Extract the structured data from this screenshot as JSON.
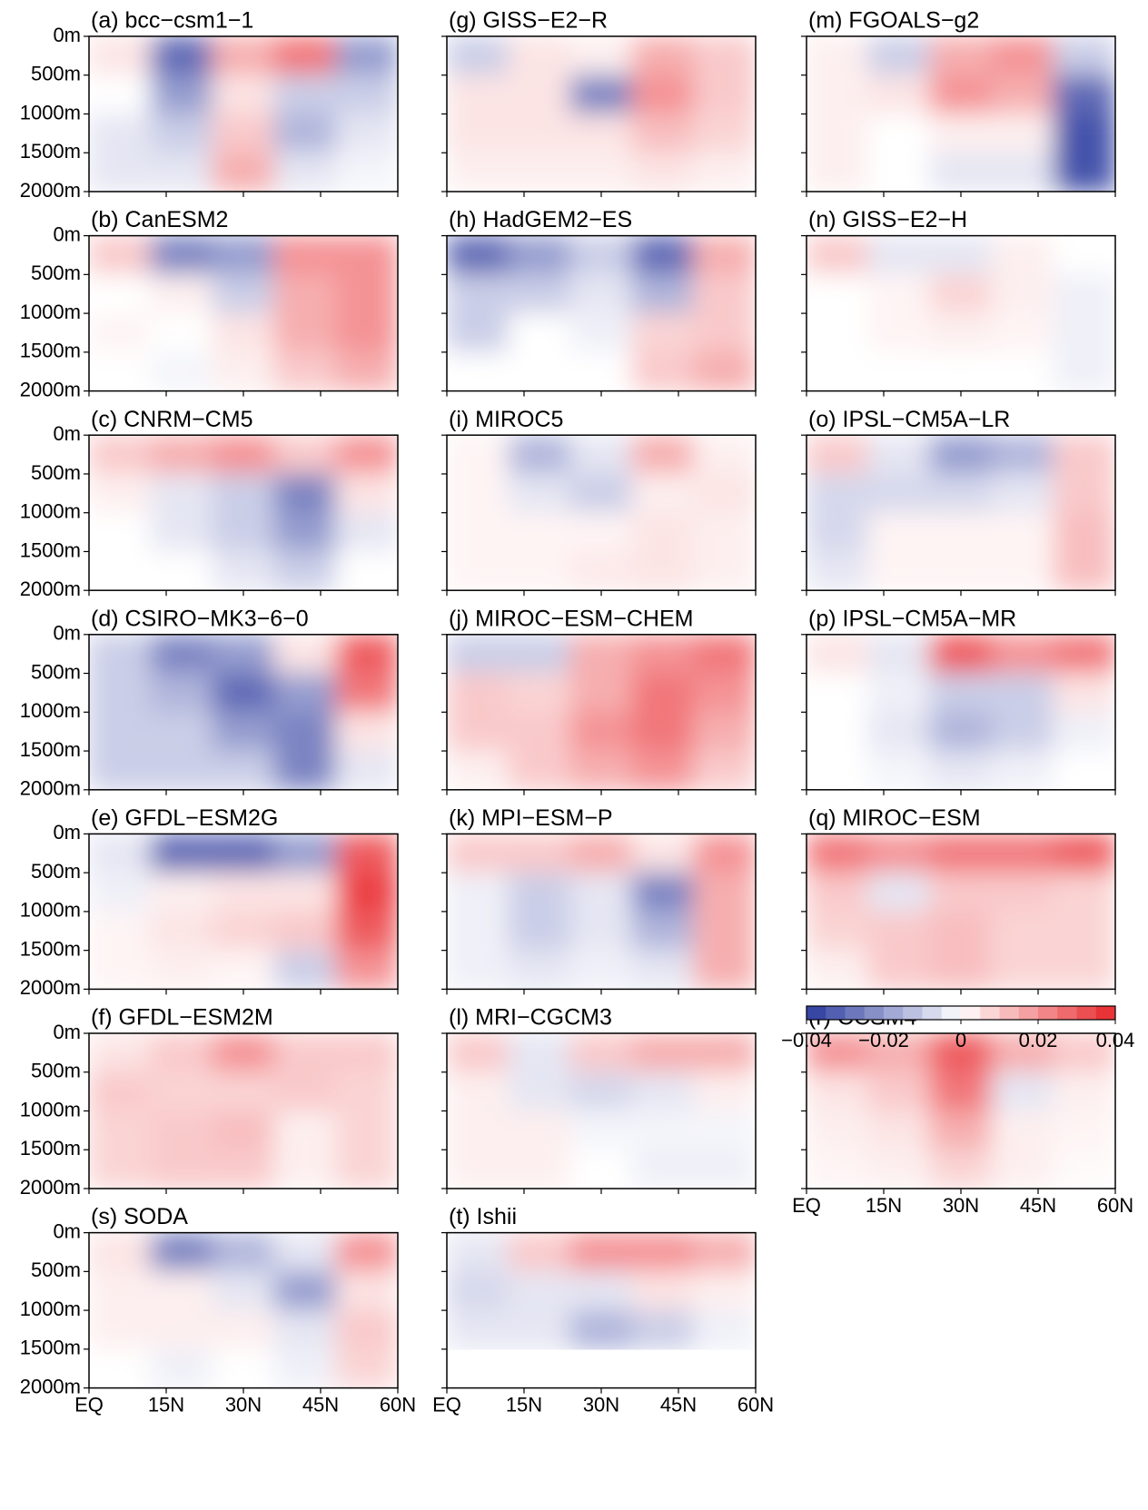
{
  "chart_data": {
    "type": "heatmap",
    "xlim": [
      0,
      60
    ],
    "xticks": [
      {
        "value": 0,
        "label": "EQ"
      },
      {
        "value": 15,
        "label": "15N"
      },
      {
        "value": 30,
        "label": "30N"
      },
      {
        "value": 45,
        "label": "45N"
      },
      {
        "value": 60,
        "label": "60N"
      }
    ],
    "ylim": [
      0,
      2000
    ],
    "yticks": [
      {
        "value": 0,
        "label": "0m"
      },
      {
        "value": 500,
        "label": "500m"
      },
      {
        "value": 1000,
        "label": "1000m"
      },
      {
        "value": 1500,
        "label": "1500m"
      },
      {
        "value": 2000,
        "label": "2000m"
      }
    ],
    "x_edges": [
      0,
      12,
      24,
      36,
      48,
      60
    ],
    "y_edges": [
      0,
      500,
      1000,
      1500,
      2000
    ],
    "colormap": [
      "#2b3a9e",
      "#ffffff",
      "#e8262a"
    ],
    "colorbar": {
      "lim": [
        -0.04,
        0.04
      ],
      "levels": 16,
      "ticks": [
        {
          "value": -0.04,
          "label": "−0.04"
        },
        {
          "value": -0.02,
          "label": "−0.02"
        },
        0,
        0.02,
        0.04
      ]
    },
    "panels": [
      {
        "title": "(a) bcc−csm1−1",
        "values": [
          [
            0.005,
            -0.03,
            0.015,
            0.025,
            -0.02
          ],
          [
            0,
            -0.02,
            0.005,
            -0.01,
            -0.01
          ],
          [
            -0.005,
            -0.01,
            0.01,
            -0.015,
            -0.005
          ],
          [
            -0.005,
            -0.005,
            0.015,
            -0.005,
            -0.002
          ]
        ]
      },
      {
        "title": "(b) CanESM2",
        "values": [
          [
            0.01,
            -0.025,
            -0.02,
            0.02,
            0.02
          ],
          [
            0,
            0.003,
            -0.01,
            0.015,
            0.02
          ],
          [
            0.002,
            0,
            0.005,
            0.015,
            0.02
          ],
          [
            0,
            -0.002,
            0.003,
            0.01,
            0.015
          ]
        ]
      },
      {
        "title": "(c) CNRM−CM5",
        "values": [
          [
            0.01,
            0.015,
            0.02,
            0.01,
            0.02
          ],
          [
            0.003,
            -0.005,
            -0.01,
            -0.025,
            0.005
          ],
          [
            0,
            -0.005,
            -0.01,
            -0.02,
            -0.005
          ],
          [
            0,
            0,
            -0.005,
            -0.01,
            0
          ]
        ]
      },
      {
        "title": "(d) CSIRO−MK3−6−0",
        "values": [
          [
            -0.01,
            -0.025,
            -0.02,
            0.005,
            0.03
          ],
          [
            -0.01,
            -0.015,
            -0.03,
            -0.02,
            0.025
          ],
          [
            -0.01,
            -0.01,
            -0.02,
            -0.025,
            0.005
          ],
          [
            -0.01,
            -0.01,
            -0.01,
            -0.025,
            -0.005
          ]
        ]
      },
      {
        "title": "(e) GFDL−ESM2G",
        "values": [
          [
            -0.005,
            -0.03,
            -0.03,
            -0.02,
            0.03
          ],
          [
            -0.003,
            0.003,
            0.005,
            0.005,
            0.035
          ],
          [
            0.002,
            0.005,
            0.008,
            0.01,
            0.03
          ],
          [
            0.002,
            0.003,
            0.002,
            -0.01,
            0.02
          ]
        ]
      },
      {
        "title": "(f) GFDL−ESM2M",
        "values": [
          [
            0.005,
            0.01,
            0.02,
            0.01,
            0.01
          ],
          [
            0.01,
            0.008,
            0.008,
            0.01,
            0.008
          ],
          [
            0.008,
            0.01,
            0.012,
            0.003,
            0.008
          ],
          [
            0.008,
            0.01,
            0.01,
            0.003,
            0.008
          ]
        ]
      },
      {
        "title": "(g) GISS−E2−R",
        "values": [
          [
            -0.01,
            0.005,
            0.003,
            0.015,
            0.01
          ],
          [
            0.005,
            0.005,
            -0.025,
            0.02,
            0.01
          ],
          [
            0.005,
            0.005,
            0.005,
            0.012,
            0.008
          ],
          [
            0.003,
            0.003,
            0.003,
            0.005,
            0.003
          ]
        ]
      },
      {
        "title": "(h) HadGEM2−ES",
        "values": [
          [
            -0.03,
            -0.02,
            -0.01,
            -0.03,
            0.015
          ],
          [
            -0.01,
            -0.01,
            -0.005,
            -0.015,
            0.01
          ],
          [
            -0.01,
            0,
            -0.003,
            0.008,
            0.01
          ],
          [
            0,
            0,
            0,
            0.01,
            0.015
          ]
        ]
      },
      {
        "title": "(i) MIROC5",
        "values": [
          [
            0.002,
            -0.015,
            -0.005,
            0.015,
            0.003
          ],
          [
            0.002,
            -0.005,
            -0.01,
            0.003,
            0.005
          ],
          [
            0.002,
            0.002,
            0.002,
            0.005,
            0.003
          ],
          [
            0.002,
            0.002,
            0.004,
            0.005,
            0.003
          ]
        ]
      },
      {
        "title": "(j) MIROC−ESM−CHEM",
        "values": [
          [
            -0.01,
            -0.01,
            0.015,
            0.02,
            0.025
          ],
          [
            0.01,
            0.008,
            0.015,
            0.025,
            0.02
          ],
          [
            0.01,
            0.01,
            0.02,
            0.025,
            0.015
          ],
          [
            0.003,
            0.01,
            0.015,
            0.02,
            0.01
          ]
        ]
      },
      {
        "title": "(k) MPI−ESM−P",
        "values": [
          [
            0.01,
            0.01,
            0.015,
            0.005,
            0.02
          ],
          [
            -0.003,
            -0.01,
            -0.005,
            -0.025,
            0.015
          ],
          [
            -0.003,
            -0.01,
            -0.005,
            -0.015,
            0.015
          ],
          [
            -0.003,
            -0.005,
            -0.003,
            -0.005,
            0.015
          ]
        ]
      },
      {
        "title": "(l) MRI−CGCM3",
        "values": [
          [
            0.01,
            -0.005,
            0.01,
            0.015,
            0.015
          ],
          [
            0.003,
            -0.005,
            -0.008,
            -0.005,
            0.003
          ],
          [
            0.003,
            0.003,
            -0.002,
            -0.002,
            -0.002
          ],
          [
            0.003,
            0.003,
            0,
            -0.003,
            -0.003
          ]
        ]
      },
      {
        "title": "(m) FGOALS−g2",
        "values": [
          [
            0.003,
            -0.01,
            0.015,
            0.02,
            -0.01
          ],
          [
            0.003,
            0.005,
            0.02,
            0.015,
            -0.03
          ],
          [
            0.003,
            0,
            0.003,
            0.003,
            -0.035
          ],
          [
            0.003,
            0,
            -0.005,
            -0.005,
            -0.035
          ]
        ]
      },
      {
        "title": "(n) GISS−E2−H",
        "values": [
          [
            0.01,
            -0.005,
            -0.005,
            0.003,
            0
          ],
          [
            0,
            0.002,
            0.008,
            0.003,
            -0.003
          ],
          [
            0,
            0.002,
            0.003,
            0.002,
            -0.003
          ],
          [
            0,
            0,
            0,
            0,
            -0.003
          ]
        ]
      },
      {
        "title": "(o) IPSL−CM5A−LR",
        "values": [
          [
            0.01,
            -0.005,
            -0.02,
            -0.015,
            0.01
          ],
          [
            -0.008,
            -0.008,
            -0.008,
            -0.005,
            0.01
          ],
          [
            -0.008,
            0.002,
            0.002,
            0.002,
            0.012
          ],
          [
            -0.005,
            0.002,
            0.002,
            0.002,
            0.012
          ]
        ]
      },
      {
        "title": "(p) IPSL−CM5A−MR",
        "values": [
          [
            0.005,
            -0.005,
            0.03,
            0.02,
            0.025
          ],
          [
            0,
            -0.003,
            -0.01,
            -0.01,
            0.005
          ],
          [
            0,
            -0.005,
            -0.015,
            -0.01,
            -0.003
          ],
          [
            0,
            -0.002,
            -0.005,
            -0.003,
            0
          ]
        ]
      },
      {
        "title": "(q) MIROC−ESM",
        "values": [
          [
            0.025,
            0.02,
            0.025,
            0.025,
            0.03
          ],
          [
            0.01,
            -0.005,
            0.01,
            0.01,
            0.008
          ],
          [
            0.008,
            0.01,
            0.012,
            0.008,
            0.008
          ],
          [
            0.003,
            0.01,
            0.012,
            0.008,
            0.008
          ]
        ]
      },
      {
        "title": "(r) CCSM4",
        "values": [
          [
            0.02,
            0.015,
            0.03,
            0.015,
            0.01
          ],
          [
            0.005,
            0.01,
            0.025,
            -0.005,
            0.003
          ],
          [
            0.003,
            0.005,
            0.015,
            0.003,
            0.002
          ],
          [
            0.002,
            0.003,
            0.008,
            0.003,
            0.001
          ]
        ]
      },
      {
        "title": "(s) SODA",
        "values": [
          [
            0.005,
            -0.025,
            -0.015,
            -0.005,
            0.02
          ],
          [
            0.003,
            0.003,
            -0.005,
            -0.02,
            0.005
          ],
          [
            0.003,
            0.003,
            0.003,
            -0.005,
            0.01
          ],
          [
            0,
            -0.003,
            0,
            -0.003,
            0.008
          ]
        ]
      },
      {
        "title": "(t) Ishii",
        "values": [
          [
            -0.005,
            0.01,
            0.02,
            0.02,
            0.015
          ],
          [
            -0.008,
            -0.005,
            -0.005,
            0.005,
            0.003
          ],
          [
            -0.005,
            -0.005,
            -0.015,
            -0.01,
            -0.003
          ],
          [
            null,
            null,
            null,
            null,
            null
          ]
        ]
      }
    ]
  }
}
